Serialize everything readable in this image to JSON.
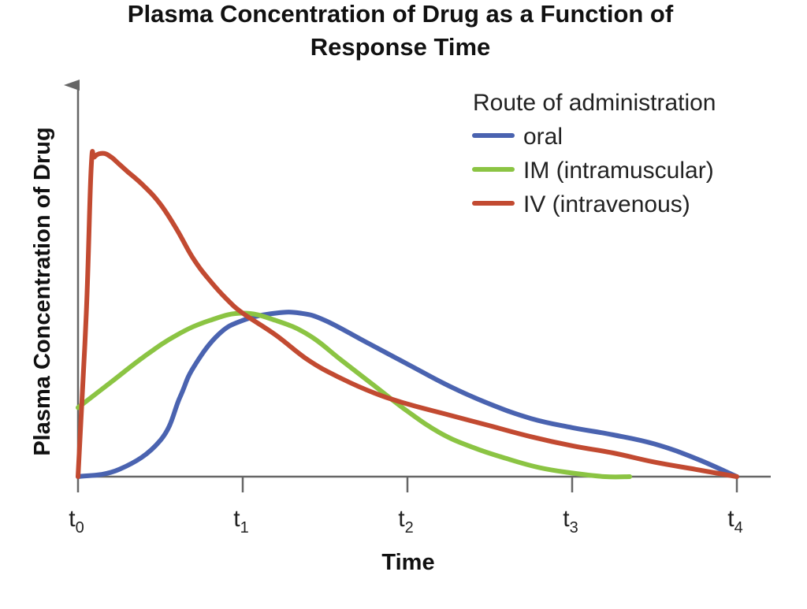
{
  "chart_data": {
    "type": "line",
    "title_line1": "Plasma Concentration of Drug as a Function of",
    "title_line2": "Response Time",
    "xlabel": "Time",
    "ylabel": "Plasma Concentration of Drug",
    "x_ticks": [
      {
        "x": 0,
        "base": "t",
        "sub": "0"
      },
      {
        "x": 1,
        "base": "t",
        "sub": "1"
      },
      {
        "x": 2,
        "base": "t",
        "sub": "2"
      },
      {
        "x": 3,
        "base": "t",
        "sub": "3"
      },
      {
        "x": 4,
        "base": "t",
        "sub": "4"
      }
    ],
    "xlim": [
      0,
      4.2
    ],
    "ylim": [
      0,
      1.0
    ],
    "grid": false,
    "legend": {
      "title": "Route of administration",
      "placement": "top-right"
    },
    "series": [
      {
        "name": "oral",
        "color": "#4a63b0",
        "points": [
          [
            0,
            0
          ],
          [
            0.25,
            0.02
          ],
          [
            0.5,
            0.1
          ],
          [
            0.62,
            0.22
          ],
          [
            0.7,
            0.3
          ],
          [
            0.85,
            0.39
          ],
          [
            1.0,
            0.43
          ],
          [
            1.2,
            0.45
          ],
          [
            1.35,
            0.45
          ],
          [
            1.5,
            0.43
          ],
          [
            1.75,
            0.37
          ],
          [
            2.0,
            0.31
          ],
          [
            2.25,
            0.25
          ],
          [
            2.5,
            0.2
          ],
          [
            2.75,
            0.16
          ],
          [
            3.0,
            0.135
          ],
          [
            3.25,
            0.115
          ],
          [
            3.5,
            0.09
          ],
          [
            3.75,
            0.05
          ],
          [
            4.0,
            0.0
          ]
        ]
      },
      {
        "name": "IM (intramuscular)",
        "color": "#8bc443",
        "points": [
          [
            0,
            0.19
          ],
          [
            0.2,
            0.26
          ],
          [
            0.4,
            0.33
          ],
          [
            0.6,
            0.39
          ],
          [
            0.8,
            0.43
          ],
          [
            1.0,
            0.45
          ],
          [
            1.2,
            0.43
          ],
          [
            1.4,
            0.39
          ],
          [
            1.6,
            0.32
          ],
          [
            1.8,
            0.25
          ],
          [
            2.0,
            0.18
          ],
          [
            2.2,
            0.12
          ],
          [
            2.4,
            0.08
          ],
          [
            2.6,
            0.05
          ],
          [
            2.8,
            0.025
          ],
          [
            3.0,
            0.01
          ],
          [
            3.2,
            0.0
          ],
          [
            3.35,
            0.0
          ]
        ]
      },
      {
        "name": "IV (intravenous)",
        "color": "#c24a31",
        "points": [
          [
            0,
            0
          ],
          [
            0.05,
            0.45
          ],
          [
            0.08,
            0.85
          ],
          [
            0.1,
            0.88
          ],
          [
            0.15,
            0.89
          ],
          [
            0.2,
            0.88
          ],
          [
            0.25,
            0.86
          ],
          [
            0.3,
            0.84
          ],
          [
            0.4,
            0.8
          ],
          [
            0.5,
            0.75
          ],
          [
            0.6,
            0.68
          ],
          [
            0.7,
            0.6
          ],
          [
            0.8,
            0.54
          ],
          [
            0.9,
            0.49
          ],
          [
            1.0,
            0.45
          ],
          [
            1.2,
            0.39
          ],
          [
            1.4,
            0.32
          ],
          [
            1.6,
            0.27
          ],
          [
            1.8,
            0.23
          ],
          [
            2.0,
            0.2
          ],
          [
            2.25,
            0.17
          ],
          [
            2.5,
            0.14
          ],
          [
            2.75,
            0.11
          ],
          [
            3.0,
            0.085
          ],
          [
            3.25,
            0.065
          ],
          [
            3.5,
            0.04
          ],
          [
            3.75,
            0.02
          ],
          [
            4.0,
            0.0
          ]
        ]
      }
    ]
  }
}
